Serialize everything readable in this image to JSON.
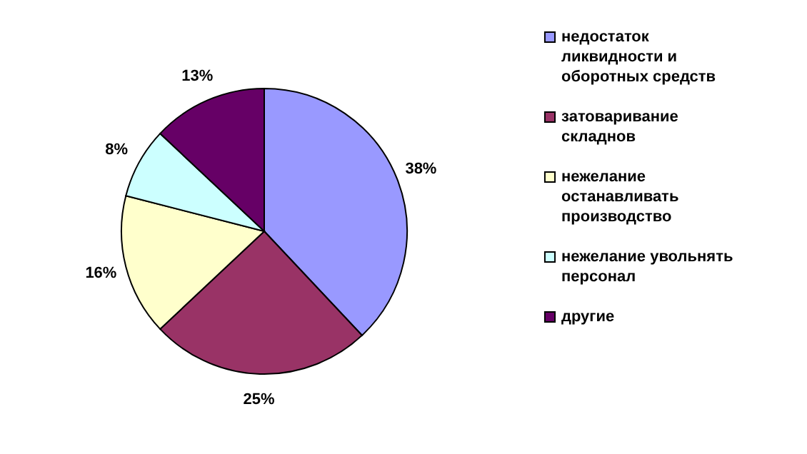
{
  "chart_data": {
    "type": "pie",
    "categories": [
      "недостаток ликвидности и оборотных средств",
      "затоваривание складнов",
      "нежелание останавливать производство",
      "нежелание увольнять персонал",
      "другие"
    ],
    "values": [
      38,
      25,
      16,
      8,
      13
    ],
    "colors": [
      "#9999ff",
      "#993366",
      "#ffffcc",
      "#ccffff",
      "#660066"
    ],
    "value_labels": [
      "38%",
      "25%",
      "16%",
      "8%",
      "13%"
    ],
    "legend": "right"
  }
}
